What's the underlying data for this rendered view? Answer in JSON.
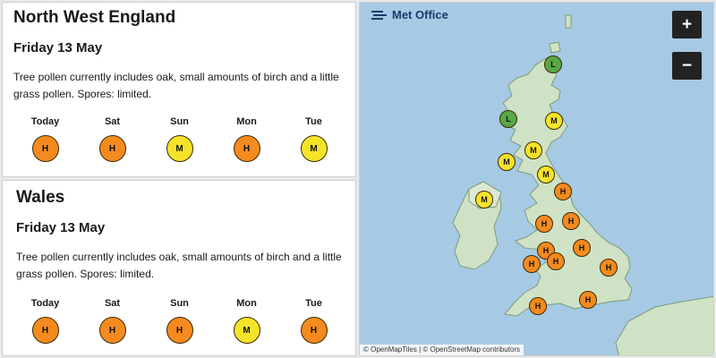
{
  "colors": {
    "high": "#f58a1f",
    "moderate": "#f5e32a",
    "low": "#58a845",
    "sea": "#a6c9e4",
    "land": "#cfe2c6"
  },
  "regions": [
    {
      "name": "North West England",
      "date": "Friday 13 May",
      "description": "Tree pollen currently includes oak, small amounts of birch and a little grass pollen. Spores: limited.",
      "forecast": [
        {
          "day": "Today",
          "level": "H"
        },
        {
          "day": "Sat",
          "level": "H"
        },
        {
          "day": "Sun",
          "level": "M"
        },
        {
          "day": "Mon",
          "level": "H"
        },
        {
          "day": "Tue",
          "level": "M"
        }
      ]
    },
    {
      "name": "Wales",
      "date": "Friday 13 May",
      "description": "Tree pollen currently includes oak, small amounts of birch and a little grass pollen. Spores: limited.",
      "forecast": [
        {
          "day": "Today",
          "level": "H"
        },
        {
          "day": "Sat",
          "level": "H"
        },
        {
          "day": "Sun",
          "level": "H"
        },
        {
          "day": "Mon",
          "level": "M"
        },
        {
          "day": "Tue",
          "level": "H"
        }
      ]
    }
  ],
  "map": {
    "logo_text": "Met Office",
    "logo_icon": "met-office-logo-icon",
    "zoom_in_label": "+",
    "zoom_out_label": "−",
    "attribution": "© OpenMapTiles | © OpenStreetMap contributors",
    "markers": [
      "L",
      "L",
      "M",
      "M",
      "M",
      "M",
      "M",
      "H",
      "H",
      "H",
      "H",
      "H",
      "H",
      "H",
      "H",
      "H",
      "H"
    ]
  }
}
